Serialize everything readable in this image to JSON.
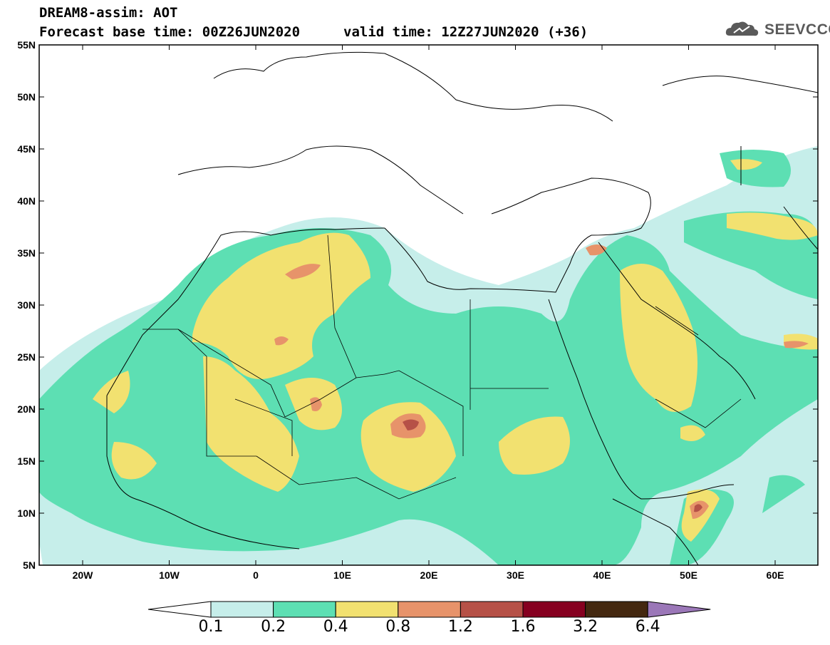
{
  "title": {
    "line1": "DREAM8-assim: AOT",
    "line2": "Forecast base time: 00Z26JUN2020",
    "valid": "valid time: 12Z27JUN2020 (+36)"
  },
  "logo": {
    "text": "SEEVCCC",
    "icon": "cloud-icon"
  },
  "axes": {
    "lat_labels": [
      "55N",
      "50N",
      "45N",
      "40N",
      "35N",
      "30N",
      "25N",
      "20N",
      "15N",
      "10N",
      "5N"
    ],
    "lon_labels": [
      "20W",
      "10W",
      "0",
      "10E",
      "20E",
      "30E",
      "40E",
      "50E",
      "60E"
    ]
  },
  "legend": {
    "labels": [
      "0.1",
      "0.2",
      "0.4",
      "0.8",
      "1.2",
      "1.6",
      "3.2",
      "6.4"
    ],
    "colors": [
      "#ffffff",
      "#c6eeea",
      "#5ddfb3",
      "#f2e170",
      "#e7936a",
      "#b65147",
      "#860020",
      "#442810",
      "#9b77b8"
    ]
  },
  "colors": {
    "c01": "#c6eeea",
    "c02": "#5ddfb3",
    "c04": "#f2e170",
    "c08": "#e7936a",
    "c12": "#b65147"
  }
}
